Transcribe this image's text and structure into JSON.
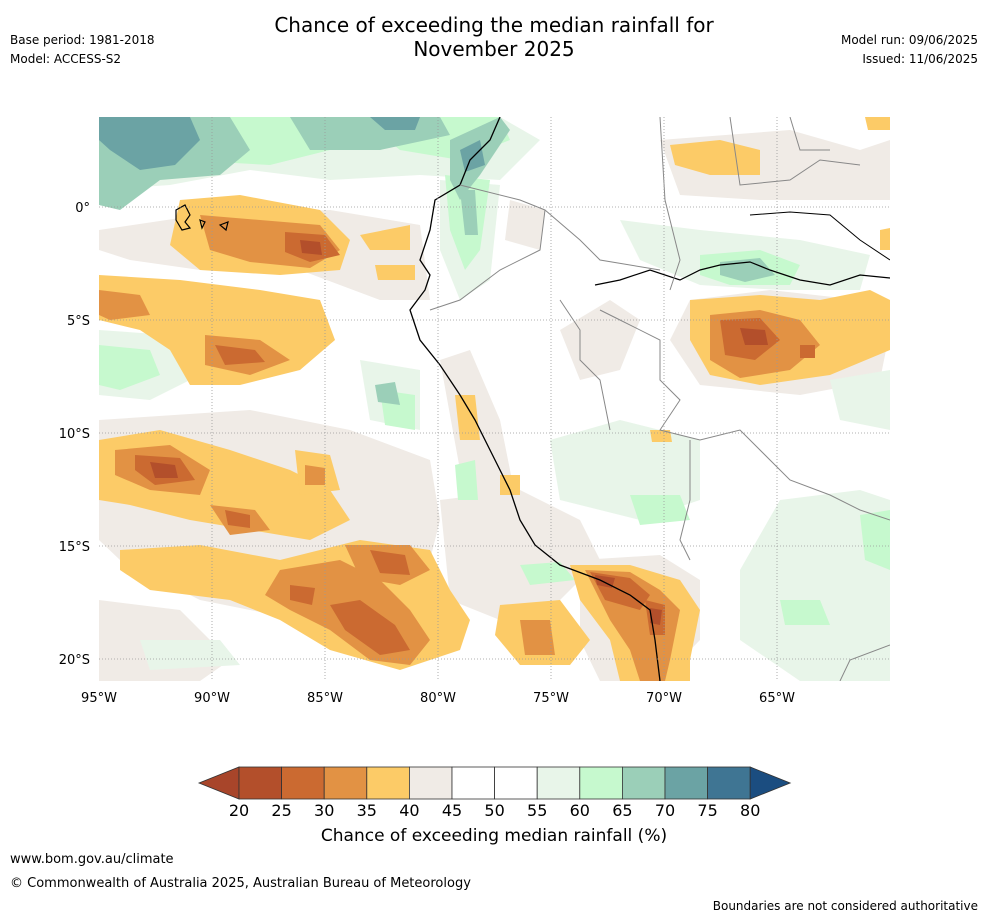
{
  "title_line1": "Chance of exceeding the median rainfall for",
  "title_line2": "November 2025",
  "base_period": "Base period: 1981-2018",
  "model": "Model: ACCESS-S2",
  "model_run": "Model run: 09/06/2025",
  "issued": "Issued: 11/06/2025",
  "lat_labels": [
    "0°",
    "5°S",
    "10°S",
    "15°S",
    "20°S"
  ],
  "lon_labels": [
    "95°W",
    "90°W",
    "85°W",
    "80°W",
    "75°W",
    "70°W",
    "65°W"
  ],
  "colorbar": {
    "ticks": [
      "20",
      "25",
      "30",
      "35",
      "40",
      "45",
      "50",
      "55",
      "60",
      "65",
      "70",
      "75",
      "80"
    ],
    "colors": [
      "#a8452a",
      "#b34f2b",
      "#cb6a31",
      "#e29244",
      "#fccb67",
      "#f0ebe6",
      "#ffffff",
      "#ffffff",
      "#e8f5e9",
      "#c6f9ce",
      "#9bcfb8",
      "#6ba3a4",
      "#3f7593",
      "#1b4d80"
    ],
    "label": "Chance of exceeding median rainfall (%)"
  },
  "footer": {
    "url": "www.bom.gov.au/climate",
    "copyright": "© Commonwealth of Australia 2025, Australian Bureau of Meteorology",
    "disclaimer": "Boundaries are not considered authoritative"
  }
}
